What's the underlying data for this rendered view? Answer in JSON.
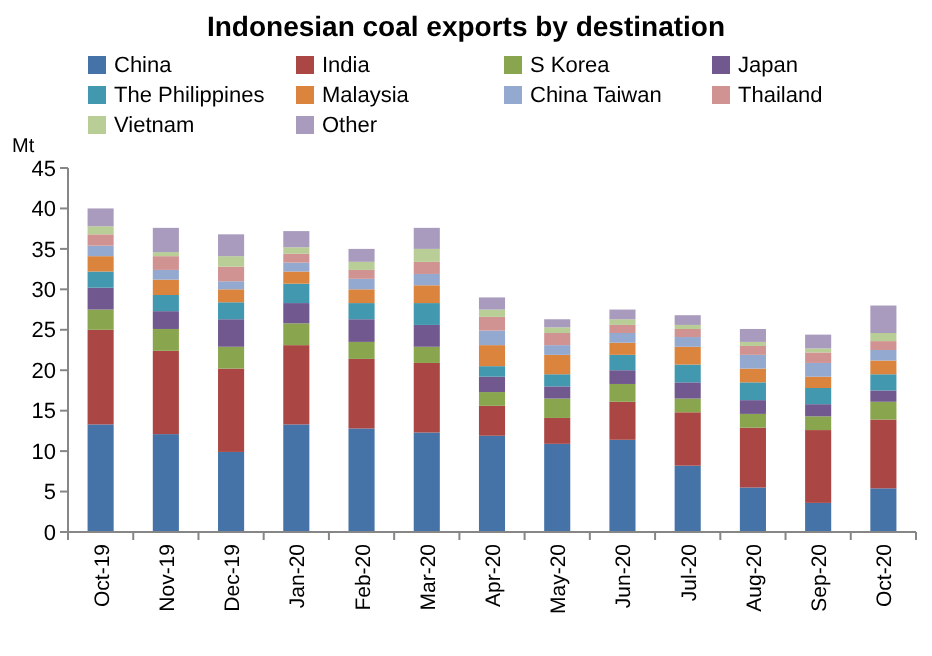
{
  "chart_data": {
    "type": "bar",
    "stacked": true,
    "title": "Indonesian coal exports by destination",
    "ylabel": "Mt",
    "categories": [
      "Oct-19",
      "Nov-19",
      "Dec-19",
      "Jan-20",
      "Feb-20",
      "Mar-20",
      "Apr-20",
      "May-20",
      "Jun-20",
      "Jul-20",
      "Aug-20",
      "Sep-20",
      "Oct-20"
    ],
    "ylim": [
      0,
      45
    ],
    "yticks": [
      0,
      5,
      10,
      15,
      20,
      25,
      30,
      35,
      40,
      45
    ],
    "grid": false,
    "legend": "top",
    "series": [
      {
        "name": "China",
        "color": "#4572a7",
        "values": [
          13.3,
          12.1,
          9.9,
          13.3,
          12.8,
          12.3,
          11.9,
          10.9,
          11.4,
          8.2,
          5.5,
          3.6,
          5.4
        ]
      },
      {
        "name": "India",
        "color": "#aa4643",
        "values": [
          11.7,
          10.3,
          10.3,
          9.8,
          8.6,
          8.6,
          3.7,
          3.2,
          4.7,
          6.6,
          7.4,
          9.0,
          8.5
        ]
      },
      {
        "name": "S Korea",
        "color": "#89a54e",
        "values": [
          2.5,
          2.7,
          2.7,
          2.7,
          2.1,
          2.0,
          1.7,
          2.4,
          2.2,
          1.7,
          1.7,
          1.7,
          2.2
        ]
      },
      {
        "name": "Japan",
        "color": "#71588f",
        "values": [
          2.7,
          2.2,
          3.4,
          2.5,
          2.8,
          2.7,
          1.9,
          1.5,
          1.7,
          2.0,
          1.7,
          1.5,
          1.4
        ]
      },
      {
        "name": "The Philippines",
        "color": "#4198af",
        "values": [
          2.0,
          2.0,
          2.1,
          2.4,
          2.0,
          2.7,
          1.3,
          1.5,
          1.9,
          2.2,
          2.2,
          2.0,
          2.0
        ]
      },
      {
        "name": "Malaysia",
        "color": "#db843d",
        "values": [
          1.9,
          1.9,
          1.6,
          1.5,
          1.7,
          2.2,
          2.6,
          2.4,
          1.5,
          2.2,
          1.7,
          1.4,
          1.7
        ]
      },
      {
        "name": "China Taiwan",
        "color": "#93a9cf",
        "values": [
          1.3,
          1.2,
          1.0,
          1.1,
          1.3,
          1.4,
          1.8,
          1.2,
          1.2,
          1.2,
          1.7,
          1.7,
          1.3
        ]
      },
      {
        "name": "Thailand",
        "color": "#d19392",
        "values": [
          1.4,
          1.7,
          1.8,
          1.1,
          1.1,
          1.5,
          1.7,
          1.5,
          1.0,
          1.0,
          1.1,
          1.3,
          1.1
        ]
      },
      {
        "name": "Vietnam",
        "color": "#b9cd96",
        "values": [
          1.0,
          0.5,
          1.3,
          0.8,
          1.0,
          1.6,
          0.9,
          0.7,
          0.7,
          0.5,
          0.5,
          0.5,
          1.0
        ]
      },
      {
        "name": "Other",
        "color": "#a99bbd",
        "values": [
          2.2,
          3.0,
          2.7,
          2.0,
          1.6,
          2.6,
          1.5,
          1.0,
          1.2,
          1.2,
          1.6,
          1.7,
          3.4
        ]
      }
    ]
  }
}
